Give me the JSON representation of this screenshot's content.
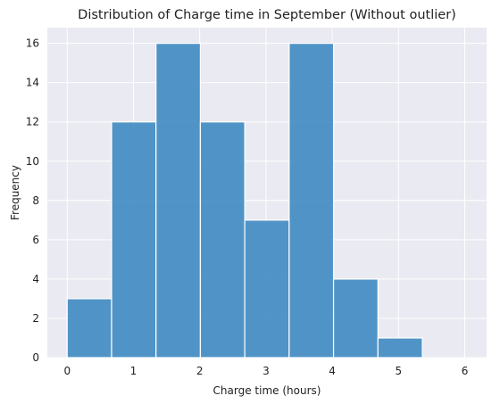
{
  "chart_data": {
    "type": "bar",
    "title": "Distribution of Charge time in September (Without outlier)",
    "xlabel": "Charge time (hours)",
    "ylabel": "Frequency",
    "bin_edges": [
      0.0,
      0.67,
      1.34,
      2.01,
      2.68,
      3.35,
      4.02,
      4.69,
      5.36,
      6.03
    ],
    "values": [
      3,
      12,
      16,
      12,
      7,
      16,
      4,
      1,
      0
    ],
    "xlim": [
      -0.3,
      6.33
    ],
    "ylim": [
      0,
      16.8
    ],
    "xticks": [
      "0",
      "1",
      "2",
      "3",
      "4",
      "5",
      "6"
    ],
    "yticks": [
      "0",
      "2",
      "4",
      "6",
      "8",
      "10",
      "12",
      "14",
      "16"
    ],
    "grid": true,
    "colors": {
      "plot_bg": "#eaeaf2",
      "grid": "#ffffff",
      "bar": "#3a87c0"
    }
  }
}
